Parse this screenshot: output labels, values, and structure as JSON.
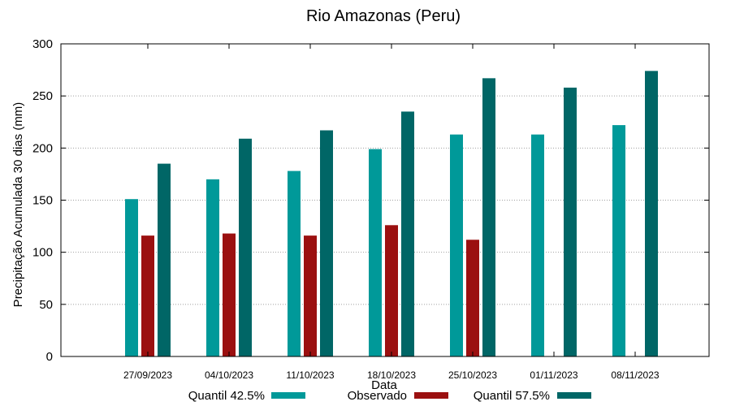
{
  "chart_data": {
    "type": "bar",
    "title": "Rio Amazonas (Peru)",
    "xlabel": "Data",
    "ylabel": "Precipitação Acumulada 30 dias (mm)",
    "ylim": [
      0,
      300
    ],
    "yticks": [
      0,
      50,
      100,
      150,
      200,
      250,
      300
    ],
    "grid": true,
    "legend_position": "bottom",
    "categories": [
      "27/09/2023",
      "04/10/2023",
      "11/10/2023",
      "18/10/2023",
      "25/10/2023",
      "01/11/2023",
      "08/11/2023"
    ],
    "series": [
      {
        "name": "Quantil 42.5%",
        "color": "#009999",
        "values": [
          151,
          170,
          178,
          199,
          213,
          213,
          222
        ]
      },
      {
        "name": "Observado",
        "color": "#9b1010",
        "values": [
          116,
          118,
          116,
          126,
          112,
          null,
          null
        ]
      },
      {
        "name": "Quantil 57.5%",
        "color": "#006666",
        "values": [
          185,
          209,
          217,
          235,
          267,
          258,
          274
        ]
      }
    ]
  }
}
